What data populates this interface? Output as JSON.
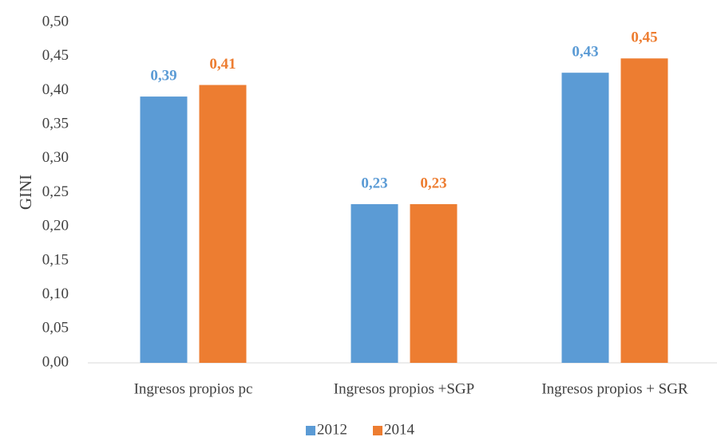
{
  "chart_data": {
    "type": "bar",
    "y_label": "GINI",
    "categories": [
      "Ingresos propios pc",
      "Ingresos propios +SGP",
      "Ingresos propios + SGR"
    ],
    "series": [
      {
        "name": "2012",
        "color": "#5b9bd5",
        "values": [
          0.391,
          0.233,
          0.426
        ],
        "value_labels": [
          "0,39",
          "0,23",
          "0,43"
        ]
      },
      {
        "name": "2014",
        "color": "#ed7d31",
        "values": [
          0.408,
          0.233,
          0.447
        ],
        "value_labels": [
          "0,41",
          "0,23",
          "0,45"
        ]
      }
    ],
    "ylim": [
      0,
      0.5
    ],
    "yticks": [
      {
        "value": 0,
        "label": "0,00"
      },
      {
        "value": 0.05,
        "label": "0,05"
      },
      {
        "value": 0.1,
        "label": "0,10"
      },
      {
        "value": 0.15,
        "label": "0,15"
      },
      {
        "value": 0.2,
        "label": "0,20"
      },
      {
        "value": 0.25,
        "label": "0,25"
      },
      {
        "value": 0.3,
        "label": "0,30"
      },
      {
        "value": 0.35,
        "label": "0,35"
      },
      {
        "value": 0.4,
        "label": "0,40"
      },
      {
        "value": 0.45,
        "label": "0,45"
      },
      {
        "value": 0.5,
        "label": "0,50"
      }
    ],
    "grid": false,
    "legend": "bottom"
  }
}
